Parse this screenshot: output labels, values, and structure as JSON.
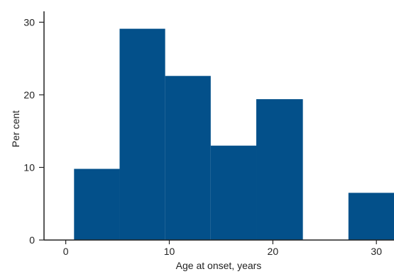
{
  "chart_data": {
    "type": "bar",
    "bins": [
      {
        "start": 0.8,
        "end": 5.2,
        "value": 9.8
      },
      {
        "start": 5.2,
        "end": 9.6,
        "value": 29.1
      },
      {
        "start": 9.6,
        "end": 14.0,
        "value": 22.6
      },
      {
        "start": 14.0,
        "end": 18.4,
        "value": 13.0
      },
      {
        "start": 18.4,
        "end": 22.9,
        "value": 19.4
      },
      {
        "start": 27.3,
        "end": 31.7,
        "value": 6.5
      }
    ],
    "xlabel": "Age at onset, years",
    "ylabel": "Per cent",
    "xlim": [
      -2.1,
      31.7
    ],
    "ylim": [
      0,
      31.5
    ],
    "xticks": [
      0,
      10,
      20,
      30
    ],
    "yticks": [
      0,
      10,
      20,
      30
    ],
    "grid": false,
    "bar_color": "#03508a",
    "axis_color": "#222222"
  }
}
